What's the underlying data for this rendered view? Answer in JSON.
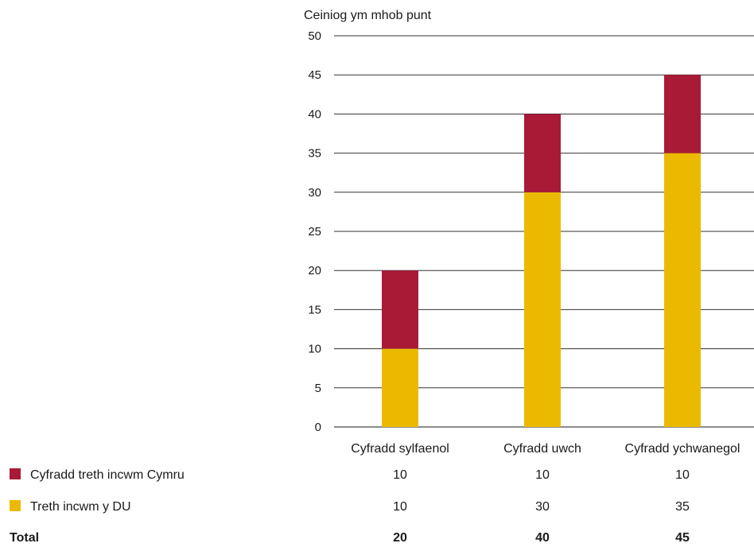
{
  "chart_data": {
    "type": "bar",
    "stacked": true,
    "ylabel": "Ceiniog ym mhob punt",
    "ylim": [
      0,
      50
    ],
    "yticks": [
      0,
      5,
      10,
      15,
      20,
      25,
      30,
      35,
      40,
      45,
      50
    ],
    "grid": true,
    "categories": [
      "Cyfradd sylfaenol",
      "Cyfradd uwch",
      "Cyfradd ychwanegol"
    ],
    "series": [
      {
        "name": "Treth incwm y DU",
        "values": [
          10,
          30,
          35
        ],
        "color": "#EBBA00"
      },
      {
        "name": "Cyfradd treth incwm Cymru",
        "values": [
          10,
          10,
          10
        ],
        "color": "#A91A37"
      }
    ],
    "table": {
      "rows": [
        {
          "label": "Cyfradd treth incwm Cymru",
          "values": [
            "10",
            "10",
            "10"
          ],
          "swatch": "#A91A37"
        },
        {
          "label": "Treth incwm y DU",
          "values": [
            "10",
            "30",
            "35"
          ],
          "swatch": "#EBBA00"
        },
        {
          "label": "Total",
          "values": [
            "20",
            "40",
            "45"
          ],
          "bold": true
        }
      ]
    }
  }
}
